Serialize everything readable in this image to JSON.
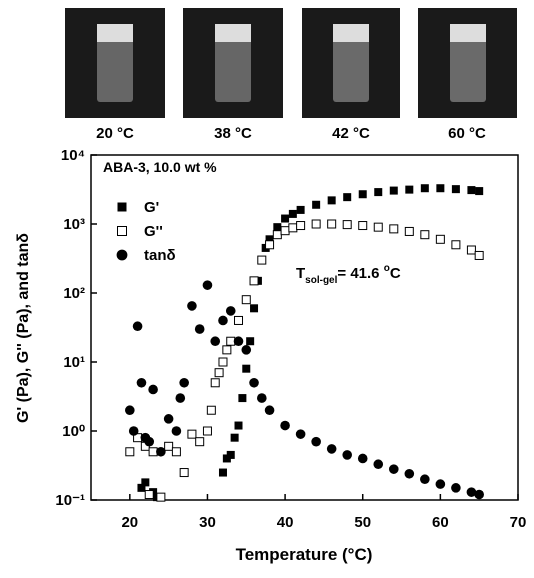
{
  "photos": [
    {
      "label": "20 °C"
    },
    {
      "label": "38 °C"
    },
    {
      "label": "42 °C"
    },
    {
      "label": "60 °C"
    }
  ],
  "chart_data": {
    "type": "scatter",
    "title": "ABA-3, 10.0 wt %",
    "annotation": {
      "main": "T",
      "sub": "sol-gel",
      "rest": "= 41.6 ",
      "sup": "o",
      "unit": "C"
    },
    "x_label": "Temperature (°C)",
    "y_label": "G' (Pa), G'' (Pa), and tanδ",
    "xlim": [
      15,
      70
    ],
    "xticks": [
      20,
      30,
      40,
      50,
      60,
      70
    ],
    "ylim": [
      0.1,
      10000
    ],
    "log_y": true,
    "yticks": [
      {
        "value": 0.1,
        "label": "10⁻¹"
      },
      {
        "value": 1,
        "label": "10⁰"
      },
      {
        "value": 10,
        "label": "10¹"
      },
      {
        "value": 100,
        "label": "10²"
      },
      {
        "value": 1000,
        "label": "10³"
      },
      {
        "value": 10000,
        "label": "10⁴"
      }
    ],
    "series": [
      {
        "name": "G'",
        "color": "#000000",
        "marker": "square",
        "x": [
          21.5,
          22,
          22.5,
          23,
          23.5,
          32,
          32.5,
          33,
          33.5,
          34,
          34.5,
          35,
          35.5,
          36,
          36.5,
          37,
          37.5,
          38,
          39,
          40,
          41,
          42,
          44,
          46,
          48,
          50,
          52,
          54,
          56,
          58,
          60,
          62,
          64,
          65
        ],
        "values": [
          0.15,
          0.18,
          0.12,
          0.13,
          0.11,
          0.25,
          0.4,
          0.45,
          0.8,
          1.2,
          3,
          8,
          20,
          60,
          150,
          300,
          450,
          600,
          900,
          1200,
          1400,
          1600,
          1900,
          2200,
          2450,
          2700,
          2900,
          3050,
          3150,
          3300,
          3300,
          3200,
          3100,
          3000
        ]
      },
      {
        "name": "G''",
        "color": "#000000",
        "marker": "square-open",
        "x": [
          20,
          21,
          22,
          22.5,
          23,
          24,
          25,
          26,
          27,
          28,
          29,
          30,
          30.5,
          31,
          31.5,
          32,
          32.5,
          33,
          34,
          35,
          36,
          37,
          38,
          39,
          40,
          41,
          42,
          44,
          46,
          48,
          50,
          52,
          54,
          56,
          58,
          60,
          62,
          64,
          65
        ],
        "values": [
          0.5,
          0.8,
          0.6,
          0.12,
          0.5,
          0.11,
          0.6,
          0.5,
          0.25,
          0.9,
          0.7,
          1.0,
          2,
          5,
          7,
          10,
          15,
          20,
          40,
          80,
          150,
          300,
          500,
          700,
          800,
          880,
          950,
          1000,
          1000,
          980,
          950,
          900,
          850,
          780,
          700,
          600,
          500,
          420,
          350
        ]
      },
      {
        "name": "tanδ",
        "color": "#000000",
        "marker": "circle",
        "x": [
          20,
          20.5,
          21,
          21.5,
          22,
          22.5,
          23,
          24,
          25,
          26,
          26.5,
          27,
          28,
          29,
          30,
          31,
          32,
          33,
          34,
          35,
          36,
          37,
          38,
          40,
          42,
          44,
          46,
          48,
          50,
          52,
          54,
          56,
          58,
          60,
          62,
          64,
          65
        ],
        "values": [
          2,
          1,
          33,
          5,
          0.8,
          0.7,
          4,
          0.5,
          1.5,
          1,
          3,
          5,
          65,
          30,
          130,
          20,
          40,
          55,
          20,
          15,
          5,
          3,
          2,
          1.2,
          0.9,
          0.7,
          0.55,
          0.45,
          0.4,
          0.33,
          0.28,
          0.24,
          0.2,
          0.17,
          0.15,
          0.13,
          0.12
        ]
      }
    ]
  }
}
